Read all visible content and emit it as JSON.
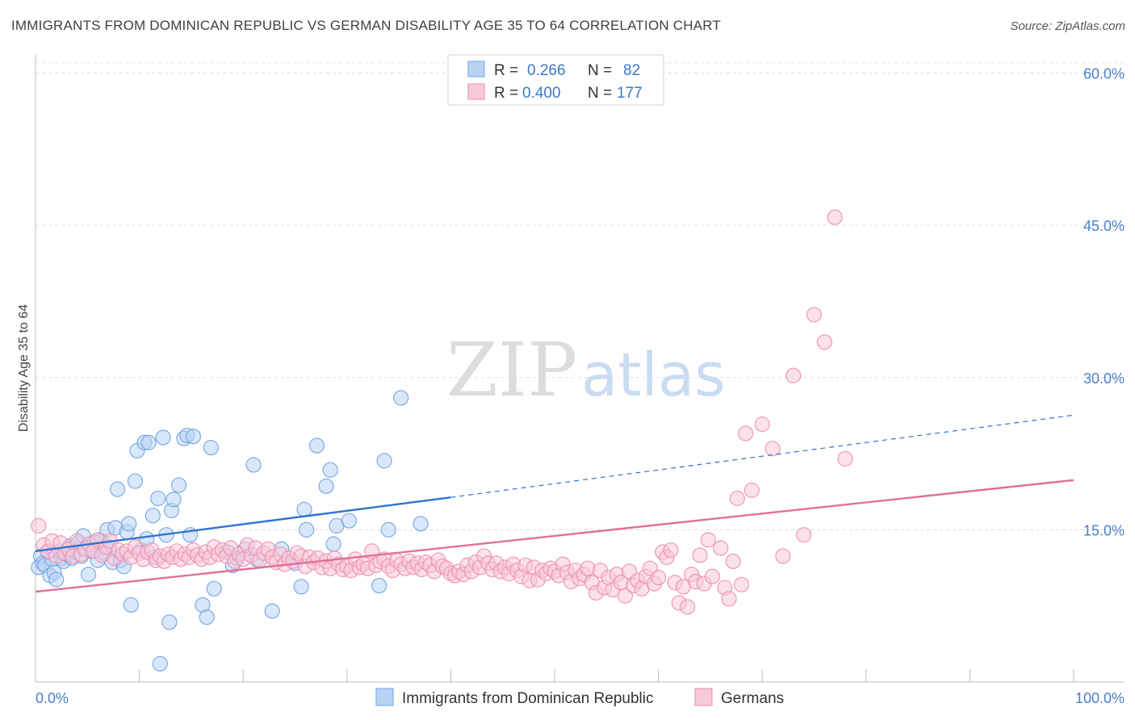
{
  "header": {
    "title": "IMMIGRANTS FROM DOMINICAN REPUBLIC VS GERMAN DISABILITY AGE 35 TO 64 CORRELATION CHART",
    "source": "Source: ZipAtlas.com"
  },
  "watermark": {
    "part1": "ZIP",
    "part2": "atlas"
  },
  "stats": [
    {
      "r_label": "R =",
      "r_value": "0.266",
      "n_label": "N =",
      "n_value": "82",
      "color": "#7fb0e8",
      "fill": "#b9d3f5"
    },
    {
      "r_label": "R =",
      "r_value": "0.400",
      "n_label": "N =",
      "n_value": "177",
      "color": "#ee9ab5",
      "fill": "#f8c9d8"
    }
  ],
  "legend": [
    {
      "label": "Immigrants from Dominican Republic",
      "color": "#7fb0e8",
      "fill": "#b9d3f5"
    },
    {
      "label": "Germans",
      "color": "#ee9ab5",
      "fill": "#f8c9d8"
    }
  ],
  "chart_data": {
    "type": "scatter",
    "title": "IMMIGRANTS FROM DOMINICAN REPUBLIC VS GERMAN DISABILITY AGE 35 TO 64 CORRELATION CHART",
    "xlabel": "",
    "ylabel": "Disability Age 35 to 64",
    "xlim": [
      0,
      100
    ],
    "ylim": [
      0,
      61
    ],
    "x_tick_labels": [
      "0.0%",
      "100.0%"
    ],
    "y_ticks": [
      15,
      30,
      45,
      60
    ],
    "y_tick_labels": [
      "15.0%",
      "30.0%",
      "45.0%",
      "60.0%"
    ],
    "grid": true,
    "legend_position": "bottom",
    "series": [
      {
        "name": "Immigrants from Dominican Republic",
        "color": "#6fa3e0",
        "fill": "#b9d3f5",
        "trend": {
          "x0": 0,
          "y0": 12.9,
          "x1": 40,
          "y1": 18.2,
          "dash_to_x": 100,
          "dash_to_y": 26.3,
          "color": "#2f74d0"
        },
        "points": [
          [
            0.3,
            11.3
          ],
          [
            0.5,
            12.4
          ],
          [
            0.7,
            11.7
          ],
          [
            0.9,
            11.5
          ],
          [
            1.2,
            12.8
          ],
          [
            1.4,
            10.5
          ],
          [
            1.6,
            12.1
          ],
          [
            1.8,
            10.8
          ],
          [
            2.0,
            10.1
          ],
          [
            2.3,
            12.9
          ],
          [
            2.5,
            12.2
          ],
          [
            2.7,
            11.9
          ],
          [
            3.0,
            12.6
          ],
          [
            3.3,
            13.4
          ],
          [
            3.5,
            12.2
          ],
          [
            3.8,
            12.9
          ],
          [
            4.1,
            13.7
          ],
          [
            4.4,
            12.4
          ],
          [
            4.6,
            14.4
          ],
          [
            4.9,
            13.3
          ],
          [
            5.1,
            10.6
          ],
          [
            5.4,
            12.9
          ],
          [
            5.7,
            13.8
          ],
          [
            6.0,
            12.0
          ],
          [
            6.3,
            13.9
          ],
          [
            6.6,
            12.7
          ],
          [
            6.9,
            15.0
          ],
          [
            7.1,
            13.3
          ],
          [
            7.4,
            11.8
          ],
          [
            7.7,
            15.2
          ],
          [
            7.9,
            19.0
          ],
          [
            8.2,
            12.0
          ],
          [
            8.5,
            11.4
          ],
          [
            8.8,
            14.8
          ],
          [
            9.0,
            15.6
          ],
          [
            9.2,
            7.6
          ],
          [
            9.6,
            19.8
          ],
          [
            9.8,
            22.8
          ],
          [
            10.2,
            13.0
          ],
          [
            10.5,
            23.6
          ],
          [
            10.7,
            14.1
          ],
          [
            10.9,
            23.6
          ],
          [
            11.3,
            16.4
          ],
          [
            11.5,
            12.3
          ],
          [
            11.8,
            18.1
          ],
          [
            12.0,
            1.8
          ],
          [
            12.3,
            24.1
          ],
          [
            12.6,
            14.5
          ],
          [
            12.9,
            5.9
          ],
          [
            13.1,
            16.9
          ],
          [
            13.3,
            18.0
          ],
          [
            13.8,
            19.4
          ],
          [
            14.3,
            24.0
          ],
          [
            14.6,
            24.3
          ],
          [
            14.9,
            14.5
          ],
          [
            15.2,
            24.2
          ],
          [
            16.1,
            7.6
          ],
          [
            16.5,
            6.4
          ],
          [
            16.9,
            23.1
          ],
          [
            17.2,
            9.2
          ],
          [
            18.5,
            12.8
          ],
          [
            19.0,
            11.5
          ],
          [
            19.4,
            12.2
          ],
          [
            20.2,
            13.1
          ],
          [
            21.0,
            21.4
          ],
          [
            21.3,
            12.1
          ],
          [
            22.8,
            7.0
          ],
          [
            23.7,
            13.1
          ],
          [
            25.0,
            11.7
          ],
          [
            25.6,
            9.4
          ],
          [
            25.9,
            17.0
          ],
          [
            26.1,
            15.0
          ],
          [
            27.1,
            23.3
          ],
          [
            28.0,
            19.3
          ],
          [
            28.4,
            20.9
          ],
          [
            28.7,
            13.6
          ],
          [
            29.0,
            15.4
          ],
          [
            30.2,
            15.9
          ],
          [
            33.1,
            9.5
          ],
          [
            33.6,
            21.8
          ],
          [
            34.0,
            15.0
          ],
          [
            35.2,
            28.0
          ],
          [
            37.1,
            15.6
          ]
        ]
      },
      {
        "name": "Germans",
        "color": "#ec8fb0",
        "fill": "#f8c9d8",
        "trend": {
          "x0": 0,
          "y0": 8.9,
          "x1": 100,
          "y1": 19.9,
          "color": "#e0709a"
        },
        "points": [
          [
            0.3,
            15.4
          ],
          [
            0.8,
            13.5
          ],
          [
            1.2,
            12.9
          ],
          [
            1.6,
            13.9
          ],
          [
            2.0,
            12.4
          ],
          [
            2.4,
            13.7
          ],
          [
            2.8,
            12.7
          ],
          [
            3.2,
            13.1
          ],
          [
            3.6,
            12.4
          ],
          [
            4.0,
            13.9
          ],
          [
            4.4,
            12.6
          ],
          [
            4.8,
            13.1
          ],
          [
            5.2,
            13.6
          ],
          [
            5.6,
            12.9
          ],
          [
            6.0,
            14.0
          ],
          [
            6.4,
            12.5
          ],
          [
            6.8,
            13.3
          ],
          [
            7.2,
            13.9
          ],
          [
            7.6,
            12.2
          ],
          [
            8.0,
            13.0
          ],
          [
            8.4,
            12.6
          ],
          [
            8.8,
            12.9
          ],
          [
            9.2,
            12.3
          ],
          [
            9.6,
            13.3
          ],
          [
            10.0,
            12.7
          ],
          [
            10.4,
            12.1
          ],
          [
            10.8,
            12.8
          ],
          [
            11.2,
            13.0
          ],
          [
            11.6,
            12.0
          ],
          [
            12.0,
            12.4
          ],
          [
            12.4,
            11.9
          ],
          [
            12.8,
            12.6
          ],
          [
            13.2,
            12.3
          ],
          [
            13.6,
            12.9
          ],
          [
            14.0,
            12.1
          ],
          [
            14.4,
            12.6
          ],
          [
            14.8,
            12.3
          ],
          [
            15.2,
            13.0
          ],
          [
            15.6,
            12.5
          ],
          [
            16.0,
            12.1
          ],
          [
            16.4,
            12.8
          ],
          [
            16.8,
            12.3
          ],
          [
            17.2,
            13.3
          ],
          [
            17.6,
            12.6
          ],
          [
            18.0,
            13.0
          ],
          [
            18.4,
            12.4
          ],
          [
            18.8,
            13.2
          ],
          [
            19.2,
            11.9
          ],
          [
            19.6,
            12.6
          ],
          [
            20.0,
            12.1
          ],
          [
            20.4,
            13.5
          ],
          [
            20.8,
            12.5
          ],
          [
            21.2,
            13.2
          ],
          [
            21.6,
            12.0
          ],
          [
            22.0,
            12.7
          ],
          [
            22.4,
            13.1
          ],
          [
            22.8,
            12.3
          ],
          [
            23.2,
            11.8
          ],
          [
            23.6,
            12.6
          ],
          [
            24.0,
            11.6
          ],
          [
            24.4,
            12.2
          ],
          [
            24.8,
            11.9
          ],
          [
            25.2,
            12.7
          ],
          [
            25.6,
            12.4
          ],
          [
            26.0,
            11.4
          ],
          [
            26.4,
            12.3
          ],
          [
            26.8,
            11.8
          ],
          [
            27.2,
            12.2
          ],
          [
            27.6,
            11.3
          ],
          [
            28.0,
            11.9
          ],
          [
            28.4,
            11.2
          ],
          [
            28.8,
            12.2
          ],
          [
            29.2,
            11.6
          ],
          [
            29.6,
            11.1
          ],
          [
            30.0,
            11.4
          ],
          [
            30.4,
            11.0
          ],
          [
            30.8,
            12.1
          ],
          [
            31.2,
            11.3
          ],
          [
            31.6,
            11.6
          ],
          [
            32.0,
            11.2
          ],
          [
            32.4,
            12.9
          ],
          [
            32.8,
            11.5
          ],
          [
            33.2,
            11.9
          ],
          [
            33.6,
            12.1
          ],
          [
            34.0,
            11.4
          ],
          [
            34.4,
            11.0
          ],
          [
            34.8,
            12.0
          ],
          [
            35.2,
            11.6
          ],
          [
            35.6,
            11.2
          ],
          [
            36.0,
            11.9
          ],
          [
            36.4,
            11.3
          ],
          [
            36.8,
            11.7
          ],
          [
            37.2,
            11.1
          ],
          [
            37.6,
            11.8
          ],
          [
            38.0,
            11.5
          ],
          [
            38.4,
            10.9
          ],
          [
            38.8,
            12.0
          ],
          [
            39.2,
            11.4
          ],
          [
            39.6,
            11.2
          ],
          [
            40.0,
            10.7
          ],
          [
            40.4,
            10.5
          ],
          [
            40.8,
            10.9
          ],
          [
            41.2,
            10.6
          ],
          [
            41.6,
            11.5
          ],
          [
            42.0,
            10.9
          ],
          [
            42.4,
            11.8
          ],
          [
            42.8,
            11.3
          ],
          [
            43.2,
            12.4
          ],
          [
            43.6,
            11.7
          ],
          [
            44.0,
            11.1
          ],
          [
            44.4,
            11.7
          ],
          [
            44.8,
            10.9
          ],
          [
            45.2,
            11.3
          ],
          [
            45.6,
            10.7
          ],
          [
            46.0,
            11.6
          ],
          [
            46.4,
            11.0
          ],
          [
            46.8,
            10.4
          ],
          [
            47.2,
            11.5
          ],
          [
            47.6,
            10.0
          ],
          [
            48.0,
            11.3
          ],
          [
            48.4,
            10.1
          ],
          [
            48.8,
            11.0
          ],
          [
            49.2,
            10.7
          ],
          [
            49.6,
            11.2
          ],
          [
            50.0,
            10.9
          ],
          [
            50.4,
            10.5
          ],
          [
            50.8,
            11.6
          ],
          [
            51.2,
            10.8
          ],
          [
            51.6,
            9.9
          ],
          [
            52.0,
            11.0
          ],
          [
            52.4,
            10.2
          ],
          [
            52.8,
            10.6
          ],
          [
            53.2,
            11.2
          ],
          [
            53.6,
            9.8
          ],
          [
            54.0,
            8.8
          ],
          [
            54.4,
            11.0
          ],
          [
            54.8,
            9.3
          ],
          [
            55.2,
            10.3
          ],
          [
            55.6,
            9.1
          ],
          [
            56.0,
            10.6
          ],
          [
            56.4,
            9.8
          ],
          [
            56.8,
            8.5
          ],
          [
            57.2,
            10.9
          ],
          [
            57.6,
            9.5
          ],
          [
            58.0,
            10.0
          ],
          [
            58.4,
            9.2
          ],
          [
            58.8,
            10.4
          ],
          [
            59.2,
            11.2
          ],
          [
            59.6,
            9.7
          ],
          [
            60.0,
            10.3
          ],
          [
            60.4,
            12.8
          ],
          [
            60.8,
            12.3
          ],
          [
            61.2,
            13.0
          ],
          [
            61.6,
            9.8
          ],
          [
            62.0,
            7.8
          ],
          [
            62.4,
            9.4
          ],
          [
            62.8,
            7.4
          ],
          [
            63.2,
            10.6
          ],
          [
            63.6,
            9.9
          ],
          [
            64.0,
            12.5
          ],
          [
            64.4,
            9.7
          ],
          [
            64.8,
            14.0
          ],
          [
            65.2,
            10.4
          ],
          [
            66.0,
            13.2
          ],
          [
            66.4,
            9.3
          ],
          [
            66.8,
            8.2
          ],
          [
            67.2,
            11.9
          ],
          [
            67.6,
            18.1
          ],
          [
            68.0,
            9.6
          ],
          [
            68.4,
            24.5
          ],
          [
            69.0,
            18.9
          ],
          [
            70.0,
            25.4
          ],
          [
            71.0,
            23.0
          ],
          [
            72.0,
            12.4
          ],
          [
            73.0,
            30.2
          ],
          [
            74.0,
            14.5
          ],
          [
            75.0,
            36.2
          ],
          [
            76.0,
            33.5
          ],
          [
            77.0,
            45.8
          ],
          [
            78.0,
            22.0
          ]
        ]
      }
    ]
  }
}
